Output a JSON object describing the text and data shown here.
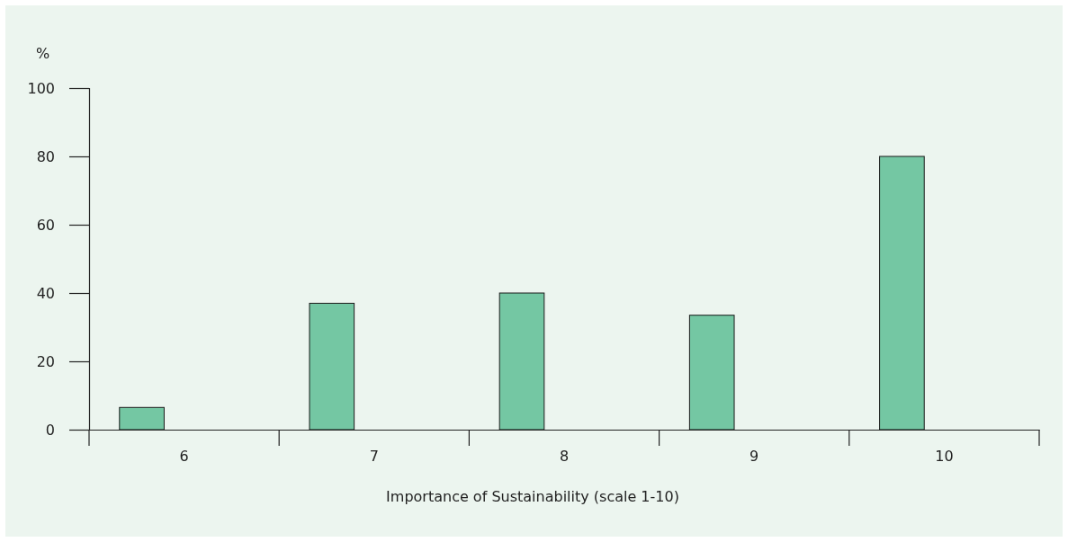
{
  "chart_data": {
    "type": "bar",
    "xlabel": "Importance of Sustainability (scale 1-10)",
    "ylabel": "%",
    "categories": [
      "6",
      "7",
      "8",
      "9",
      "10"
    ],
    "values": [
      6.5,
      37,
      40,
      33.5,
      80
    ],
    "color": "#74c7a3",
    "ylim": [
      0,
      100
    ],
    "yticks": [
      0,
      20,
      40,
      60,
      80,
      100
    ],
    "grid": false
  }
}
